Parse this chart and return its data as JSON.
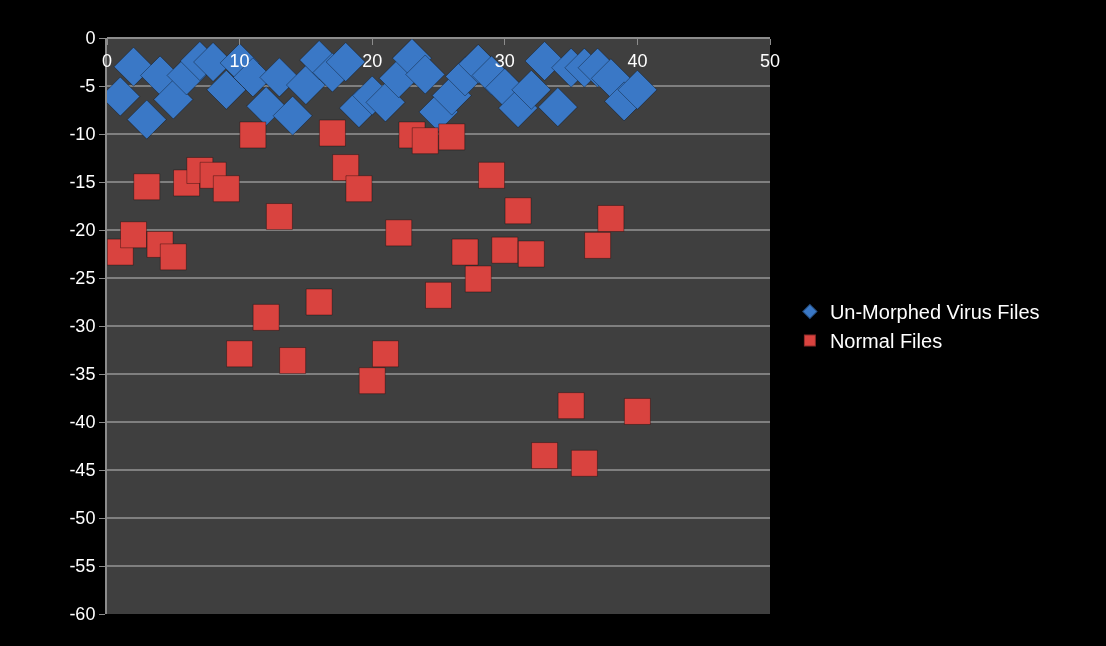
{
  "chart_data": {
    "type": "scatter",
    "xlim": [
      0,
      50
    ],
    "xticks": [
      0,
      10,
      20,
      30,
      40,
      50
    ],
    "ylim": [
      -60,
      0
    ],
    "yticks": [
      0,
      -5,
      -10,
      -15,
      -20,
      -25,
      -30,
      -35,
      -40,
      -45,
      -50,
      -55,
      -60
    ],
    "grid": "y",
    "legend": "right",
    "series": [
      {
        "name": "Un-Morphed Virus Files",
        "color": "#3a78c6",
        "marker": "diamond",
        "x": [
          1,
          2,
          3,
          4,
          5,
          6,
          7,
          8,
          9,
          10,
          11,
          12,
          13,
          14,
          15,
          16,
          17,
          18,
          19,
          20,
          21,
          22,
          23,
          24,
          25,
          26,
          27,
          28,
          29,
          30,
          31,
          32,
          33,
          34,
          35,
          36,
          37,
          38,
          39,
          40
        ],
        "values": [
          -6.1,
          -3.0,
          -8.5,
          -3.9,
          -6.4,
          -3.9,
          -2.4,
          -2.5,
          -5.4,
          -2.6,
          -4.1,
          -7.1,
          -4.1,
          -8.1,
          -4.9,
          -2.3,
          -3.6,
          -2.5,
          -7.3,
          -6.0,
          -6.7,
          -4.2,
          -2.1,
          -3.8,
          -7.7,
          -6.0,
          -4.0,
          -2.7,
          -3.9,
          -5.2,
          -7.3,
          -5.4,
          -2.4,
          -7.2,
          -3.1,
          -3.1,
          -3.1,
          -4.2,
          -6.6,
          -5.4
        ]
      },
      {
        "name": "Normal Files",
        "color": "#d9433f",
        "marker": "square",
        "x": [
          1,
          2,
          3,
          4,
          5,
          6,
          7,
          8,
          9,
          10,
          11,
          12,
          13,
          14,
          16,
          17,
          18,
          19,
          20,
          21,
          22,
          23,
          24,
          25,
          26,
          27,
          28,
          29,
          30,
          31,
          32,
          33,
          35,
          36,
          37,
          38,
          40
        ],
        "values": [
          -22.3,
          -20.5,
          -15.5,
          -21.5,
          -22.8,
          -15.1,
          -13.8,
          -14.3,
          -15.7,
          -32.9,
          -10.1,
          -29.1,
          -18.6,
          -33.6,
          -27.5,
          -9.9,
          -13.5,
          -15.7,
          -35.7,
          -32.9,
          -20.3,
          -10.1,
          -10.7,
          -26.8,
          -10.3,
          -22.3,
          -25.1,
          -14.3,
          -22.1,
          -18.0,
          -22.5,
          -43.5,
          -38.3,
          -44.3,
          -21.6,
          -18.8,
          -38.9
        ]
      }
    ]
  }
}
